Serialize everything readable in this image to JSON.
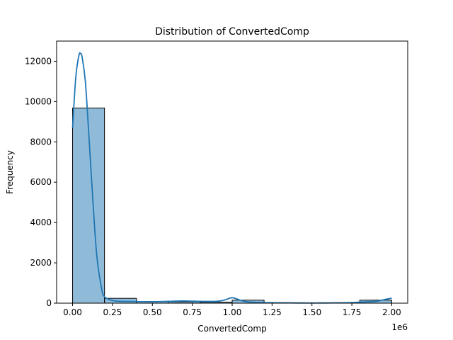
{
  "chart_data": {
    "type": "bar",
    "title": "Distribution of ConvertedComp",
    "xlabel": "ConvertedComp",
    "ylabel": "Frequency",
    "x_offset_label": "1e6",
    "xlim": [
      -0.1,
      2.1
    ],
    "ylim": [
      0,
      13000
    ],
    "x_ticks": [
      0.0,
      0.25,
      0.5,
      0.75,
      1.0,
      1.25,
      1.5,
      1.75,
      2.0
    ],
    "x_tick_labels": [
      "0.00",
      "0.25",
      "0.50",
      "0.75",
      "1.00",
      "1.25",
      "1.50",
      "1.75",
      "2.00"
    ],
    "y_ticks": [
      0,
      2000,
      4000,
      6000,
      8000,
      10000,
      12000
    ],
    "y_tick_labels": [
      "0",
      "2000",
      "4000",
      "6000",
      "8000",
      "10000",
      "12000"
    ],
    "bins": [
      {
        "x0": 0.0,
        "x1": 0.2,
        "count": 9680
      },
      {
        "x0": 0.2,
        "x1": 0.4,
        "count": 240
      },
      {
        "x0": 0.4,
        "x1": 0.6,
        "count": 80
      },
      {
        "x0": 0.6,
        "x1": 0.8,
        "count": 70
      },
      {
        "x0": 0.8,
        "x1": 1.0,
        "count": 50
      },
      {
        "x0": 1.0,
        "x1": 1.2,
        "count": 150
      },
      {
        "x0": 1.2,
        "x1": 1.4,
        "count": 20
      },
      {
        "x0": 1.4,
        "x1": 1.6,
        "count": 10
      },
      {
        "x0": 1.6,
        "x1": 1.8,
        "count": 10
      },
      {
        "x0": 1.8,
        "x1": 2.0,
        "count": 150
      }
    ],
    "kde": {
      "x": [
        0.0,
        0.02,
        0.04,
        0.05,
        0.06,
        0.08,
        0.1,
        0.12,
        0.15,
        0.18,
        0.2,
        0.25,
        0.3,
        0.4,
        0.5,
        0.6,
        0.7,
        0.8,
        0.9,
        0.95,
        1.0,
        1.05,
        1.1,
        1.2,
        1.3,
        1.5,
        1.7,
        1.8,
        1.9,
        1.95,
        2.0
      ],
      "y": [
        8700,
        11200,
        12300,
        12380,
        12200,
        11000,
        8600,
        6000,
        2500,
        800,
        320,
        130,
        90,
        80,
        70,
        90,
        110,
        90,
        90,
        150,
        270,
        150,
        60,
        30,
        20,
        10,
        20,
        50,
        90,
        170,
        250
      ]
    },
    "grid": false,
    "bar_color": "#1f77b4",
    "bar_fill_opacity": 0.5,
    "line_color": "#1f77b4"
  }
}
